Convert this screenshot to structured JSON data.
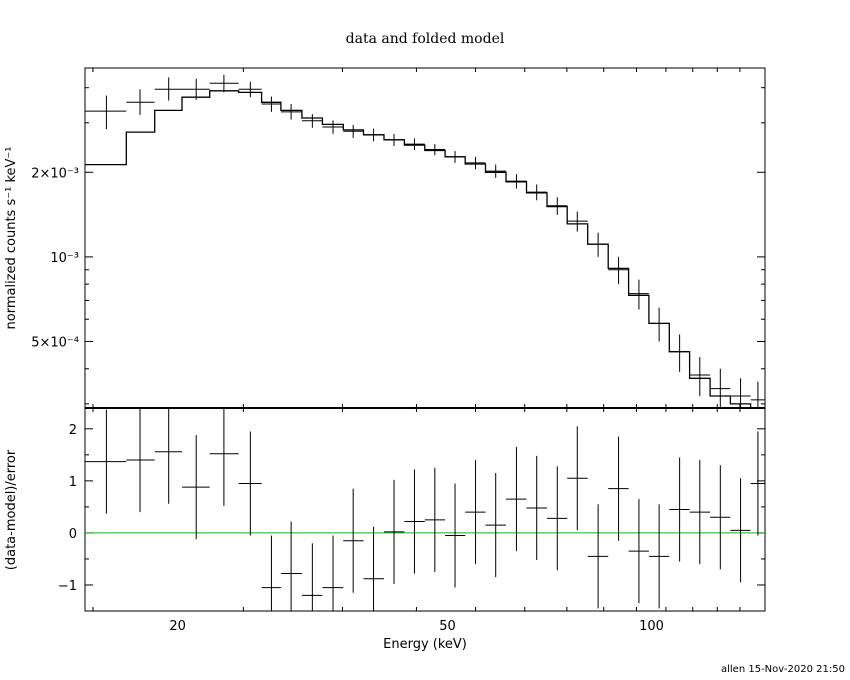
{
  "chart_data": {
    "type": "scatter",
    "title": "data and folded model",
    "footer": "allen 15-Nov-2020 21:50",
    "xlabel": "Energy (keV)",
    "x_scale": "log",
    "xlim": [
      14.6,
      147
    ],
    "xticks": [
      {
        "value": 20,
        "label": "20"
      },
      {
        "value": 50,
        "label": "50"
      },
      {
        "value": 100,
        "label": "100"
      }
    ],
    "colors": {
      "axes": "#000000",
      "data": "#000000",
      "model": "#000000",
      "zero_line": "#00c000"
    },
    "top_panel": {
      "ylabel": "normalized counts s⁻¹ keV⁻¹",
      "y_scale": "log",
      "ylim": [
        0.00029,
        0.0047
      ],
      "yticks": [
        {
          "value": 0.002,
          "label": "2×10⁻³"
        },
        {
          "value": 0.001,
          "label": "10⁻³"
        },
        {
          "value": 0.0005,
          "label": "5×10⁻⁴"
        }
      ],
      "model_steps": [
        {
          "lo": 14.6,
          "hi": 16.8,
          "y": 0.00213
        },
        {
          "lo": 16.8,
          "hi": 18.5,
          "y": 0.00278
        },
        {
          "lo": 18.5,
          "hi": 20.3,
          "y": 0.00332
        },
        {
          "lo": 20.3,
          "hi": 22.3,
          "y": 0.0037
        },
        {
          "lo": 22.3,
          "hi": 24.6,
          "y": 0.0039
        },
        {
          "lo": 24.6,
          "hi": 26.6,
          "y": 0.00385
        },
        {
          "lo": 26.6,
          "hi": 28.4,
          "y": 0.00355
        },
        {
          "lo": 28.4,
          "hi": 30.5,
          "y": 0.00332
        },
        {
          "lo": 30.5,
          "hi": 32.7,
          "y": 0.00312
        },
        {
          "lo": 32.7,
          "hi": 35.1,
          "y": 0.00296
        },
        {
          "lo": 35.1,
          "hi": 37.6,
          "y": 0.00283
        },
        {
          "lo": 37.6,
          "hi": 40.3,
          "y": 0.00272
        },
        {
          "lo": 40.3,
          "hi": 43.2,
          "y": 0.00261
        },
        {
          "lo": 43.2,
          "hi": 46.3,
          "y": 0.0025
        },
        {
          "lo": 46.3,
          "hi": 49.6,
          "y": 0.00239
        },
        {
          "lo": 49.6,
          "hi": 53.1,
          "y": 0.00227
        },
        {
          "lo": 53.1,
          "hi": 56.9,
          "y": 0.00214
        },
        {
          "lo": 56.9,
          "hi": 61.0,
          "y": 0.002
        },
        {
          "lo": 61.0,
          "hi": 65.4,
          "y": 0.00185
        },
        {
          "lo": 65.4,
          "hi": 70.1,
          "y": 0.00169
        },
        {
          "lo": 70.1,
          "hi": 75.1,
          "y": 0.00151
        },
        {
          "lo": 75.1,
          "hi": 80.5,
          "y": 0.00131
        },
        {
          "lo": 80.5,
          "hi": 86.3,
          "y": 0.00111
        },
        {
          "lo": 86.3,
          "hi": 92.5,
          "y": 0.00091
        },
        {
          "lo": 92.5,
          "hi": 99.1,
          "y": 0.00073
        },
        {
          "lo": 99.1,
          "hi": 106.2,
          "y": 0.00058
        },
        {
          "lo": 106.2,
          "hi": 113.8,
          "y": 0.00046
        },
        {
          "lo": 113.8,
          "hi": 122.0,
          "y": 0.00037
        },
        {
          "lo": 122.0,
          "hi": 130.7,
          "y": 0.00032
        },
        {
          "lo": 130.7,
          "hi": 140.0,
          "y": 0.0003
        },
        {
          "lo": 140.0,
          "hi": 147.0,
          "y": 0.00029
        }
      ],
      "points": [
        {
          "x": 15.7,
          "xlo": 14.6,
          "xhi": 16.8,
          "y": 0.0033,
          "ylo": 0.00285,
          "yhi": 0.00375
        },
        {
          "x": 17.6,
          "xlo": 16.8,
          "xhi": 18.5,
          "y": 0.00355,
          "ylo": 0.0032,
          "yhi": 0.00395
        },
        {
          "x": 19.4,
          "xlo": 18.5,
          "xhi": 20.3,
          "y": 0.00395,
          "ylo": 0.0036,
          "yhi": 0.00435
        },
        {
          "x": 21.3,
          "xlo": 20.3,
          "xhi": 22.3,
          "y": 0.00395,
          "ylo": 0.00362,
          "yhi": 0.0043
        },
        {
          "x": 23.4,
          "xlo": 22.3,
          "xhi": 24.6,
          "y": 0.00415,
          "ylo": 0.00385,
          "yhi": 0.00445
        },
        {
          "x": 25.6,
          "xlo": 24.6,
          "xhi": 26.6,
          "y": 0.00395,
          "ylo": 0.0037,
          "yhi": 0.0042
        },
        {
          "x": 27.5,
          "xlo": 26.6,
          "xhi": 28.4,
          "y": 0.0035,
          "ylo": 0.00328,
          "yhi": 0.00372
        },
        {
          "x": 29.4,
          "xlo": 28.4,
          "xhi": 30.5,
          "y": 0.00328,
          "ylo": 0.00308,
          "yhi": 0.0035
        },
        {
          "x": 31.6,
          "xlo": 30.5,
          "xhi": 32.7,
          "y": 0.00305,
          "ylo": 0.00288,
          "yhi": 0.00322
        },
        {
          "x": 33.9,
          "xlo": 32.7,
          "xhi": 35.1,
          "y": 0.0029,
          "ylo": 0.00274,
          "yhi": 0.00306
        },
        {
          "x": 36.3,
          "xlo": 35.1,
          "xhi": 37.6,
          "y": 0.0028,
          "ylo": 0.00265,
          "yhi": 0.00295
        },
        {
          "x": 38.9,
          "xlo": 37.6,
          "xhi": 40.3,
          "y": 0.00272,
          "ylo": 0.00258,
          "yhi": 0.00286
        },
        {
          "x": 41.7,
          "xlo": 40.3,
          "xhi": 43.2,
          "y": 0.00261,
          "ylo": 0.00248,
          "yhi": 0.00274
        },
        {
          "x": 44.7,
          "xlo": 43.2,
          "xhi": 46.3,
          "y": 0.00252,
          "ylo": 0.0024,
          "yhi": 0.00264
        },
        {
          "x": 47.9,
          "xlo": 46.3,
          "xhi": 49.6,
          "y": 0.00241,
          "ylo": 0.0023,
          "yhi": 0.00252
        },
        {
          "x": 51.3,
          "xlo": 49.6,
          "xhi": 53.1,
          "y": 0.00227,
          "ylo": 0.00216,
          "yhi": 0.00238
        },
        {
          "x": 55.0,
          "xlo": 53.1,
          "xhi": 56.9,
          "y": 0.00216,
          "ylo": 0.00205,
          "yhi": 0.00227
        },
        {
          "x": 58.9,
          "xlo": 56.9,
          "xhi": 61.0,
          "y": 0.00202,
          "ylo": 0.00191,
          "yhi": 0.00213
        },
        {
          "x": 63.2,
          "xlo": 61.0,
          "xhi": 65.4,
          "y": 0.00186,
          "ylo": 0.00175,
          "yhi": 0.00197
        },
        {
          "x": 67.7,
          "xlo": 65.4,
          "xhi": 70.1,
          "y": 0.0017,
          "ylo": 0.00159,
          "yhi": 0.00181
        },
        {
          "x": 72.6,
          "xlo": 70.1,
          "xhi": 75.1,
          "y": 0.00152,
          "ylo": 0.00141,
          "yhi": 0.00163
        },
        {
          "x": 77.7,
          "xlo": 75.1,
          "xhi": 80.5,
          "y": 0.00134,
          "ylo": 0.00123,
          "yhi": 0.00145
        },
        {
          "x": 83.4,
          "xlo": 80.5,
          "xhi": 86.3,
          "y": 0.00111,
          "ylo": 0.001,
          "yhi": 0.00122
        },
        {
          "x": 89.4,
          "xlo": 86.3,
          "xhi": 92.5,
          "y": 0.0009,
          "ylo": 0.0008,
          "yhi": 0.001
        },
        {
          "x": 95.8,
          "xlo": 92.5,
          "xhi": 99.1,
          "y": 0.00074,
          "ylo": 0.00065,
          "yhi": 0.00083
        },
        {
          "x": 102.6,
          "xlo": 99.1,
          "xhi": 106.2,
          "y": 0.00058,
          "ylo": 0.0005,
          "yhi": 0.00066
        },
        {
          "x": 110.0,
          "xlo": 106.2,
          "xhi": 113.8,
          "y": 0.00046,
          "ylo": 0.00039,
          "yhi": 0.00053
        },
        {
          "x": 117.8,
          "xlo": 113.8,
          "xhi": 122.0,
          "y": 0.00038,
          "ylo": 0.00032,
          "yhi": 0.00044
        },
        {
          "x": 126.3,
          "xlo": 122.0,
          "xhi": 130.7,
          "y": 0.00034,
          "ylo": 0.00029,
          "yhi": 0.0004
        },
        {
          "x": 135.3,
          "xlo": 130.7,
          "xhi": 140.0,
          "y": 0.00032,
          "ylo": 0.00029,
          "yhi": 0.00037
        },
        {
          "x": 143.5,
          "xlo": 140.0,
          "xhi": 147.0,
          "y": 0.00031,
          "ylo": 0.00029,
          "yhi": 0.00036
        }
      ]
    },
    "bottom_panel": {
      "ylabel": "(data-model)/error",
      "ylim": [
        -1.5,
        2.4
      ],
      "yticks": [
        {
          "value": 2,
          "label": "2"
        },
        {
          "value": 1,
          "label": "1"
        },
        {
          "value": 0,
          "label": "0"
        },
        {
          "value": -1,
          "label": "−1"
        }
      ],
      "zero_line": 0,
      "points": [
        {
          "x": 15.7,
          "xlo": 14.6,
          "xhi": 16.8,
          "y": 1.37,
          "ylo": 0.37,
          "yhi": 2.37
        },
        {
          "x": 17.6,
          "xlo": 16.8,
          "xhi": 18.5,
          "y": 1.4,
          "ylo": 0.4,
          "yhi": 2.4
        },
        {
          "x": 19.4,
          "xlo": 18.5,
          "xhi": 20.3,
          "y": 1.56,
          "ylo": 0.56,
          "yhi": 2.4
        },
        {
          "x": 21.3,
          "xlo": 20.3,
          "xhi": 22.3,
          "y": 0.88,
          "ylo": -0.12,
          "yhi": 1.88
        },
        {
          "x": 23.4,
          "xlo": 22.3,
          "xhi": 24.6,
          "y": 1.52,
          "ylo": 0.52,
          "yhi": 2.4
        },
        {
          "x": 25.6,
          "xlo": 24.6,
          "xhi": 26.6,
          "y": 0.95,
          "ylo": -0.05,
          "yhi": 1.95
        },
        {
          "x": 27.5,
          "xlo": 26.6,
          "xhi": 28.4,
          "y": -1.05,
          "ylo": -1.5,
          "yhi": -0.05
        },
        {
          "x": 29.4,
          "xlo": 28.4,
          "xhi": 30.5,
          "y": -0.78,
          "ylo": -1.5,
          "yhi": 0.22
        },
        {
          "x": 31.6,
          "xlo": 30.5,
          "xhi": 32.7,
          "y": -1.2,
          "ylo": -1.5,
          "yhi": -0.2
        },
        {
          "x": 33.9,
          "xlo": 32.7,
          "xhi": 35.1,
          "y": -1.05,
          "ylo": -1.5,
          "yhi": -0.05
        },
        {
          "x": 36.3,
          "xlo": 35.1,
          "xhi": 37.6,
          "y": -0.15,
          "ylo": -1.15,
          "yhi": 0.85
        },
        {
          "x": 38.9,
          "xlo": 37.6,
          "xhi": 40.3,
          "y": -0.88,
          "ylo": -1.5,
          "yhi": 0.12
        },
        {
          "x": 41.7,
          "xlo": 40.3,
          "xhi": 43.2,
          "y": 0.02,
          "ylo": -0.98,
          "yhi": 1.02
        },
        {
          "x": 44.7,
          "xlo": 43.2,
          "xhi": 46.3,
          "y": 0.22,
          "ylo": -0.78,
          "yhi": 1.22
        },
        {
          "x": 47.9,
          "xlo": 46.3,
          "xhi": 49.6,
          "y": 0.25,
          "ylo": -0.75,
          "yhi": 1.25
        },
        {
          "x": 51.3,
          "xlo": 49.6,
          "xhi": 53.1,
          "y": -0.05,
          "ylo": -1.05,
          "yhi": 0.95
        },
        {
          "x": 55.0,
          "xlo": 53.1,
          "xhi": 56.9,
          "y": 0.4,
          "ylo": -0.6,
          "yhi": 1.4
        },
        {
          "x": 58.9,
          "xlo": 56.9,
          "xhi": 61.0,
          "y": 0.15,
          "ylo": -0.85,
          "yhi": 1.15
        },
        {
          "x": 63.2,
          "xlo": 61.0,
          "xhi": 65.4,
          "y": 0.65,
          "ylo": -0.35,
          "yhi": 1.65
        },
        {
          "x": 67.7,
          "xlo": 65.4,
          "xhi": 70.1,
          "y": 0.48,
          "ylo": -0.52,
          "yhi": 1.48
        },
        {
          "x": 72.6,
          "xlo": 70.1,
          "xhi": 75.1,
          "y": 0.28,
          "ylo": -0.72,
          "yhi": 1.28
        },
        {
          "x": 77.7,
          "xlo": 75.1,
          "xhi": 80.5,
          "y": 1.05,
          "ylo": 0.05,
          "yhi": 2.05
        },
        {
          "x": 83.4,
          "xlo": 80.5,
          "xhi": 86.3,
          "y": -0.45,
          "ylo": -1.45,
          "yhi": 0.55
        },
        {
          "x": 89.4,
          "xlo": 86.3,
          "xhi": 92.5,
          "y": 0.85,
          "ylo": -0.15,
          "yhi": 1.85
        },
        {
          "x": 95.8,
          "xlo": 92.5,
          "xhi": 99.1,
          "y": -0.35,
          "ylo": -1.35,
          "yhi": 0.65
        },
        {
          "x": 102.6,
          "xlo": 99.1,
          "xhi": 106.2,
          "y": -0.45,
          "ylo": -1.45,
          "yhi": 0.55
        },
        {
          "x": 110.0,
          "xlo": 106.2,
          "xhi": 113.8,
          "y": 0.45,
          "ylo": -0.55,
          "yhi": 1.45
        },
        {
          "x": 117.8,
          "xlo": 113.8,
          "xhi": 122.0,
          "y": 0.4,
          "ylo": -0.6,
          "yhi": 1.4
        },
        {
          "x": 126.3,
          "xlo": 122.0,
          "xhi": 130.7,
          "y": 0.3,
          "ylo": -0.7,
          "yhi": 1.3
        },
        {
          "x": 135.3,
          "xlo": 130.7,
          "xhi": 140.0,
          "y": 0.05,
          "ylo": -0.95,
          "yhi": 1.05
        },
        {
          "x": 143.5,
          "xlo": 140.0,
          "xhi": 147.0,
          "y": 0.95,
          "ylo": -0.05,
          "yhi": 1.95
        }
      ]
    }
  }
}
